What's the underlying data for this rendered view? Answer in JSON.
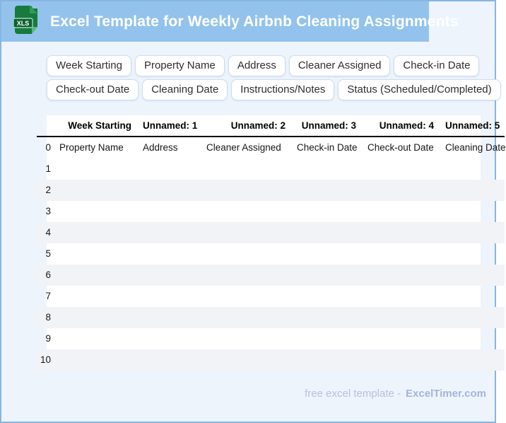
{
  "header": {
    "title": "Excel Template for Weekly Airbnb Cleaning Assignments",
    "file_icon_label": "XLS"
  },
  "field_chips": {
    "row1": [
      "Week Starting",
      "Property Name",
      "Address",
      "Cleaner Assigned",
      "Check-in Date"
    ],
    "row2": [
      "Check-out Date",
      "Cleaning Date",
      "Instructions/Notes",
      "Status (Scheduled/Completed)"
    ]
  },
  "table": {
    "index_column": [
      "0",
      "1",
      "2",
      "3",
      "4",
      "5",
      "6",
      "7",
      "8",
      "9",
      "10"
    ],
    "columns": [
      "Week Starting",
      "Unnamed: 1",
      "Unnamed: 2",
      "Unnamed: 3",
      "Unnamed: 4",
      "Unnamed: 5"
    ],
    "first_row": [
      "Property Name",
      "Address",
      "Cleaner Assigned",
      "Check-in Date",
      "Check-out Date",
      "Cleaning Date"
    ],
    "empty_row_count": 10
  },
  "footer": {
    "prefix": "free excel template -",
    "brand": "ExcelTimer.com"
  },
  "colors": {
    "page_border": "#85b6e2",
    "header_band": "#93c3ec",
    "page_background": "#eef4fc",
    "icon_green": "#187a3f",
    "icon_fold_green": "#5cb87f",
    "icon_badge_green": "#0e6132",
    "row_stripe": "#f1f3f6",
    "chip_border": "#cdddef",
    "footer_text": "#b6c1df",
    "table_header_rule": "#000000"
  }
}
